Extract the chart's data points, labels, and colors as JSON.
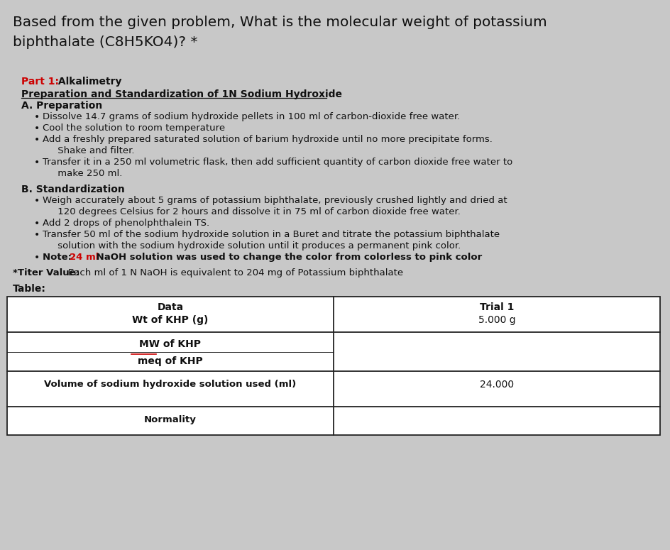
{
  "bg_color": "#c8c8c8",
  "title_line1": "Based from the given problem, What is the molecular weight of potassium",
  "title_line2": "biphthalate (C8H5KO4)? *",
  "title_fontsize": 14.5,
  "part1_label": "Part 1:",
  "part1_rest": " Alkalimetry",
  "section_prep_title": "Preparation and Standardization of 1N Sodium Hydroxide",
  "section_A": "A. Preparation",
  "bullets_A": [
    "Dissolve 14.7 grams of sodium hydroxide pellets in 100 ml of carbon-dioxide free water.",
    "Cool the solution to room temperature",
    "Add a freshly prepared saturated solution of barium hydroxide until no more precipitate forms.\n     Shake and filter.",
    "Transfer it in a 250 ml volumetric flask, then add sufficient quantity of carbon dioxide free water to\n     make 250 ml."
  ],
  "section_B": "B. Standardization",
  "bullets_B": [
    "Weigh accurately about 5 grams of potassium biphthalate, previously crushed lightly and dried at\n     120 degrees Celsius for 2 hours and dissolve it in 75 ml of carbon dioxide free water.",
    "Add 2 drops of phenolphthalein TS.",
    "Transfer 50 ml of the sodium hydroxide solution in a Buret and titrate the potassium biphthalate\n     solution with the sodium hydroxide solution until it produces a permanent pink color."
  ],
  "note_pre": "Note: ",
  "note_red": "24 ml",
  "note_post": " NaOH solution was used to change the color from colorless to pink color",
  "titer_bold": "*Titer Value: ",
  "titer_normal": "Each ml of 1 N NaOH is equivalent to 204 mg of Potassium biphthalate",
  "table_label": "Table:",
  "col1_header": "Data",
  "col2_header": "Trial 1",
  "row1a": "Wt of KHP (g)",
  "row1b": "5.000 g",
  "row2a": "MW of KHP",
  "row2b": "meq of KHP",
  "row3a": "Volume of sodium hydroxide solution used (ml)",
  "row3b": "24.000",
  "row4a": "Normality",
  "row4b": "",
  "text_color": "#111111",
  "red_color": "#cc0000",
  "body_fs": 10.0,
  "title_fs": 14.5
}
